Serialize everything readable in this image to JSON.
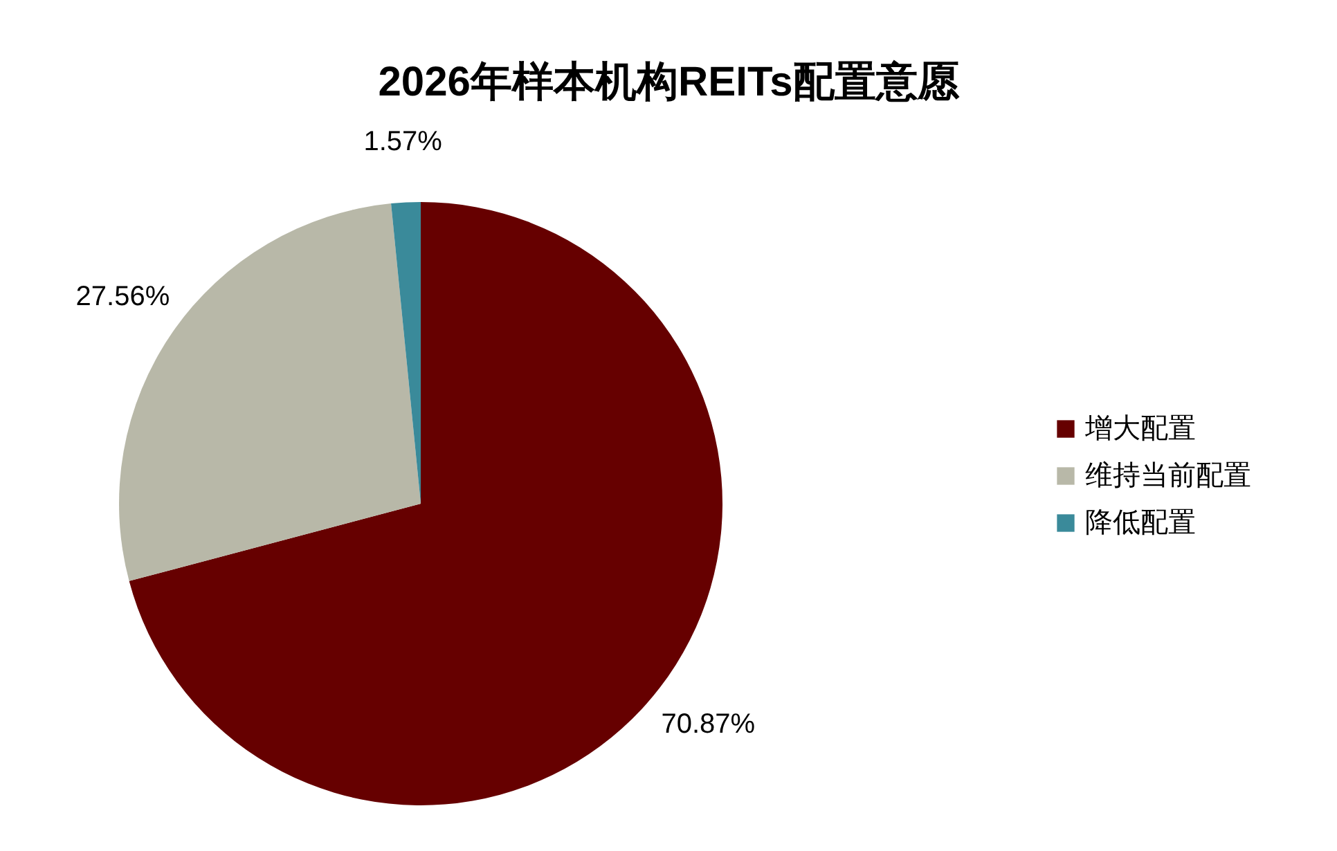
{
  "chart_data": {
    "type": "pie",
    "title": "2026年样本机构REITs配置意愿",
    "categories": [
      "增大配置",
      "维持当前配置",
      "降低配置"
    ],
    "values": [
      70.87,
      27.56,
      1.57
    ],
    "colors": [
      "#660000",
      "#b8b8a8",
      "#3a8a9a"
    ],
    "value_labels": [
      "70.87%",
      "27.56%",
      "1.57%"
    ],
    "legend": "right"
  }
}
